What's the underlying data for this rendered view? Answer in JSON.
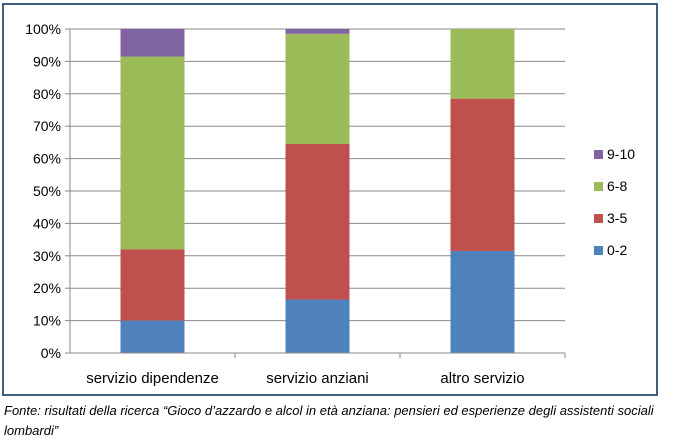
{
  "chart_data": {
    "type": "bar",
    "stacked": true,
    "categories": [
      "servizio dipendenze",
      "servizio anziani",
      "altro servizio"
    ],
    "series": [
      {
        "name": "0-2",
        "color": "#4f81bd",
        "values": [
          10,
          16.5,
          31.5
        ]
      },
      {
        "name": "3-5",
        "color": "#c0504d",
        "values": [
          22,
          48,
          47
        ]
      },
      {
        "name": "6-8",
        "color": "#9bbb59",
        "values": [
          59.5,
          34,
          21.5
        ]
      },
      {
        "name": "9-10",
        "color": "#8064a2",
        "values": [
          8.5,
          1.5,
          0
        ]
      }
    ],
    "y_ticks": [
      "0%",
      "10%",
      "20%",
      "30%",
      "40%",
      "50%",
      "60%",
      "70%",
      "80%",
      "90%",
      "100%"
    ],
    "ylim": [
      0,
      100
    ],
    "grid": true,
    "legend_position": "right",
    "legend_order": [
      "9-10",
      "6-8",
      "3-5",
      "0-2"
    ]
  },
  "caption": {
    "text": "Fonte: risultati della ricerca “Gioco d’azzardo e alcol in età anziana: pensieri ed esperienze degli assistenti sociali lombardi”"
  }
}
